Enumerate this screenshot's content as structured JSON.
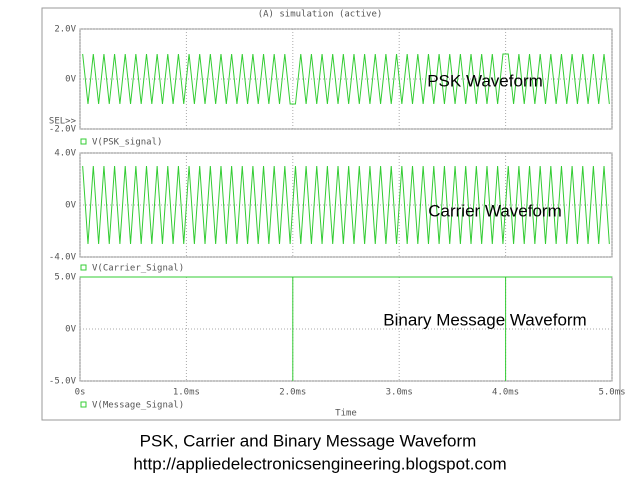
{
  "title": "(A) simulation (active)",
  "caption": [
    "PSK, Carrier and Binary Message Waveform",
    "http://appliedelectronicsengineering.blogspot.com"
  ],
  "chart_data": [
    {
      "type": "line",
      "annotation": "PSK Waveform",
      "selector_label": "SEL>>",
      "ylim": [
        -2,
        2
      ],
      "yticks": [
        {
          "value": -2,
          "label": "-2.0V"
        },
        {
          "value": 0,
          "label": "0V"
        },
        {
          "value": 2,
          "label": "2.0V"
        }
      ],
      "grid": true,
      "x": [
        0.025,
        0.075,
        0.125,
        0.175,
        0.225,
        0.275,
        0.325,
        0.375,
        0.425,
        0.475,
        0.525,
        0.575,
        0.625,
        0.675,
        0.725,
        0.775,
        0.825,
        0.875,
        0.925,
        0.975,
        1.025,
        1.075,
        1.125,
        1.175,
        1.225,
        1.275,
        1.325,
        1.375,
        1.425,
        1.475,
        1.525,
        1.575,
        1.625,
        1.675,
        1.725,
        1.775,
        1.825,
        1.875,
        1.925,
        1.975,
        2.025,
        2.075,
        2.125,
        2.175,
        2.225,
        2.275,
        2.325,
        2.375,
        2.425,
        2.475,
        2.525,
        2.575,
        2.625,
        2.675,
        2.725,
        2.775,
        2.825,
        2.875,
        2.925,
        2.975,
        3.025,
        3.075,
        3.125,
        3.175,
        3.225,
        3.275,
        3.325,
        3.375,
        3.425,
        3.475,
        3.525,
        3.575,
        3.625,
        3.675,
        3.725,
        3.775,
        3.825,
        3.875,
        3.925,
        3.975,
        4.025,
        4.075,
        4.125,
        4.175,
        4.225,
        4.275,
        4.325,
        4.375,
        4.425,
        4.475,
        4.525,
        4.575,
        4.625,
        4.675,
        4.725,
        4.775,
        4.825,
        4.875,
        4.925,
        4.975
      ],
      "series": [
        {
          "name": "V(PSK_signal)",
          "color": "#33cc33",
          "values": [
            1,
            -1,
            1,
            -1,
            1,
            -1,
            1,
            -1,
            1,
            -1,
            1,
            -1,
            1,
            -1,
            1,
            -1,
            1,
            -1,
            1,
            -1,
            1,
            -1,
            1,
            -1,
            1,
            -1,
            1,
            -1,
            1,
            -1,
            1,
            -1,
            1,
            -1,
            1,
            -1,
            1,
            -1,
            1,
            -1,
            -1,
            1,
            -1,
            1,
            -1,
            1,
            -1,
            1,
            -1,
            1,
            -1,
            1,
            -1,
            1,
            -1,
            1,
            -1,
            1,
            -1,
            1,
            -1,
            1,
            -1,
            1,
            -1,
            1,
            -1,
            1,
            -1,
            1,
            -1,
            1,
            -1,
            1,
            -1,
            1,
            -1,
            1,
            -1,
            1,
            1,
            -1,
            1,
            -1,
            1,
            -1,
            1,
            -1,
            1,
            -1,
            1,
            -1,
            1,
            -1,
            1,
            -1,
            1,
            -1,
            1,
            -1
          ]
        }
      ]
    },
    {
      "type": "line",
      "annotation": "Carrier Waveform",
      "ylim": [
        -4,
        4
      ],
      "yticks": [
        {
          "value": -4,
          "label": "-4.0V"
        },
        {
          "value": 0,
          "label": "0V"
        },
        {
          "value": 4,
          "label": "4.0V"
        }
      ],
      "grid": true,
      "x": [
        0.025,
        0.075,
        0.125,
        0.175,
        0.225,
        0.275,
        0.325,
        0.375,
        0.425,
        0.475,
        0.525,
        0.575,
        0.625,
        0.675,
        0.725,
        0.775,
        0.825,
        0.875,
        0.925,
        0.975,
        1.025,
        1.075,
        1.125,
        1.175,
        1.225,
        1.275,
        1.325,
        1.375,
        1.425,
        1.475,
        1.525,
        1.575,
        1.625,
        1.675,
        1.725,
        1.775,
        1.825,
        1.875,
        1.925,
        1.975,
        2.025,
        2.075,
        2.125,
        2.175,
        2.225,
        2.275,
        2.325,
        2.375,
        2.425,
        2.475,
        2.525,
        2.575,
        2.625,
        2.675,
        2.725,
        2.775,
        2.825,
        2.875,
        2.925,
        2.975,
        3.025,
        3.075,
        3.125,
        3.175,
        3.225,
        3.275,
        3.325,
        3.375,
        3.425,
        3.475,
        3.525,
        3.575,
        3.625,
        3.675,
        3.725,
        3.775,
        3.825,
        3.875,
        3.925,
        3.975,
        4.025,
        4.075,
        4.125,
        4.175,
        4.225,
        4.275,
        4.325,
        4.375,
        4.425,
        4.475,
        4.525,
        4.575,
        4.625,
        4.675,
        4.725,
        4.775,
        4.825,
        4.875,
        4.925,
        4.975
      ],
      "series": [
        {
          "name": "V(Carrier_Signal)",
          "color": "#33cc33",
          "values": [
            3,
            -3,
            3,
            -3,
            3,
            -3,
            3,
            -3,
            3,
            -3,
            3,
            -3,
            3,
            -3,
            3,
            -3,
            3,
            -3,
            3,
            -3,
            3,
            -3,
            3,
            -3,
            3,
            -3,
            3,
            -3,
            3,
            -3,
            3,
            -3,
            3,
            -3,
            3,
            -3,
            3,
            -3,
            3,
            -3,
            3,
            -3,
            3,
            -3,
            3,
            -3,
            3,
            -3,
            3,
            -3,
            3,
            -3,
            3,
            -3,
            3,
            -3,
            3,
            -3,
            3,
            -3,
            3,
            -3,
            3,
            -3,
            3,
            -3,
            3,
            -3,
            3,
            -3,
            3,
            -3,
            3,
            -3,
            3,
            -3,
            3,
            -3,
            3,
            -3,
            3,
            -3,
            3,
            -3,
            3,
            -3,
            3,
            -3,
            3,
            -3,
            3,
            -3,
            3,
            -3,
            3,
            -3,
            3,
            -3,
            3,
            -3
          ]
        }
      ]
    },
    {
      "type": "line",
      "annotation": "Binary Message Waveform",
      "x_label": "Time",
      "xlim": [
        0,
        5
      ],
      "xticks": [
        {
          "value": 0,
          "label": "0s"
        },
        {
          "value": 1,
          "label": "1.0ms"
        },
        {
          "value": 2,
          "label": "2.0ms"
        },
        {
          "value": 3,
          "label": "3.0ms"
        },
        {
          "value": 4,
          "label": "4.0ms"
        },
        {
          "value": 5,
          "label": "5.0ms"
        }
      ],
      "ylim": [
        -5,
        5
      ],
      "yticks": [
        {
          "value": -5,
          "label": "-5.0V"
        },
        {
          "value": 0,
          "label": "0V"
        },
        {
          "value": 5,
          "label": "5.0V"
        }
      ],
      "grid": true,
      "x": [
        0,
        2,
        2,
        2,
        4,
        4,
        4,
        5
      ],
      "series": [
        {
          "name": "V(Message_Signal)",
          "color": "#33cc33",
          "values": [
            5,
            5,
            -5,
            5,
            5,
            -5,
            5,
            5
          ]
        }
      ]
    }
  ]
}
